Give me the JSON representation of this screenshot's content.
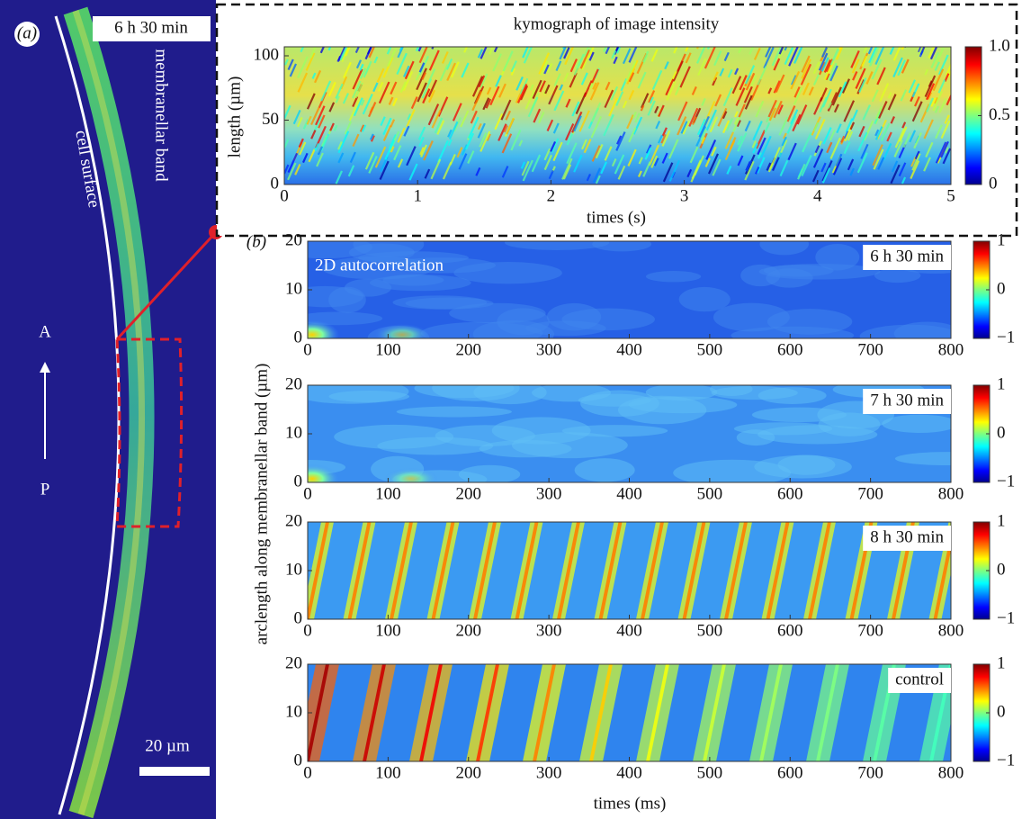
{
  "panel_a": {
    "label": "(a)",
    "time": "6 h 30 min",
    "band_label": "membranellar band",
    "surface_label": "cell surface",
    "anterior": "A",
    "posterior": "P",
    "scale_bar": "20 µm"
  },
  "kymograph": {
    "title": "kymograph of image intensity",
    "ylabel": "length (µm)",
    "xlabel": "times (s)",
    "xlim": [
      0,
      5
    ],
    "xticks": [
      0,
      1,
      2,
      3,
      4,
      5
    ],
    "ylim": [
      0,
      107
    ],
    "yticks": [
      0,
      50,
      100
    ],
    "clim": [
      0,
      1
    ],
    "cticks": [
      0,
      0.5,
      {
        "value": 1,
        "label": "1.0"
      }
    ]
  },
  "panel_b": {
    "label": "(b)",
    "annotation": "2D autocorrelation",
    "ylabel": "arclength along membranellar band (µm)",
    "xlabel": "times (ms)",
    "plots": [
      {
        "label": "6 h 30 min",
        "xlim": [
          0,
          800
        ],
        "xticks": [
          0,
          100,
          200,
          300,
          400,
          500,
          600,
          700,
          800
        ],
        "ylim": [
          0,
          20
        ],
        "yticks": [
          0,
          10,
          20
        ],
        "clim": [
          -1,
          1
        ],
        "cticks": [
          {
            "value": -1,
            "label": "−1"
          },
          0,
          1
        ]
      },
      {
        "label": "7 h 30 min",
        "xlim": [
          0,
          800
        ],
        "xticks": [
          0,
          100,
          200,
          300,
          400,
          500,
          600,
          700,
          800
        ],
        "ylim": [
          0,
          20
        ],
        "yticks": [
          0,
          10,
          20
        ],
        "clim": [
          -1,
          1
        ],
        "cticks": [
          {
            "value": -1,
            "label": "−1"
          },
          0,
          1
        ]
      },
      {
        "label": "8 h 30 min",
        "xlim": [
          0,
          800
        ],
        "xticks": [
          0,
          100,
          200,
          300,
          400,
          500,
          600,
          700,
          800
        ],
        "ylim": [
          0,
          20
        ],
        "yticks": [
          0,
          10,
          20
        ],
        "clim": [
          -1,
          1
        ],
        "cticks": [
          {
            "value": -1,
            "label": "−1"
          },
          0,
          1
        ]
      },
      {
        "label": "control",
        "xlim": [
          0,
          800
        ],
        "xticks": [
          0,
          100,
          200,
          300,
          400,
          500,
          600,
          700,
          800
        ],
        "ylim": [
          0,
          20
        ],
        "yticks": [
          0,
          10,
          20
        ],
        "clim": [
          -1,
          1
        ],
        "cticks": [
          {
            "value": -1,
            "label": "−1"
          },
          0,
          1
        ]
      }
    ]
  }
}
